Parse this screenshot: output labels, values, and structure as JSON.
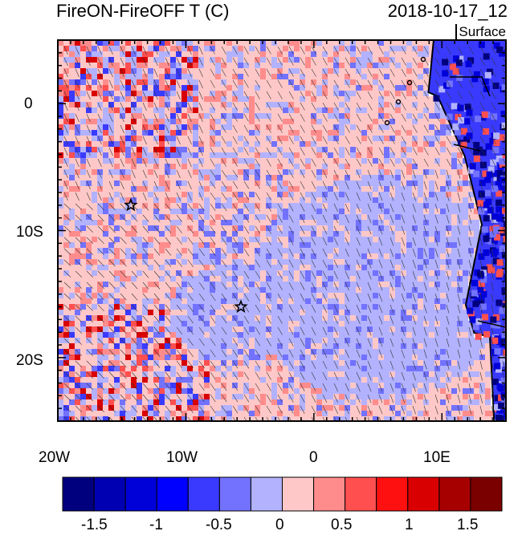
{
  "title": {
    "left": "FireON-FireOFF T (C)",
    "right": "2018-10-17_12",
    "level": "Surface"
  },
  "map": {
    "lon_range": [
      -20,
      15
    ],
    "lat_range": [
      -25,
      5
    ],
    "lon_ticks": [
      {
        "value": -20,
        "label": "20W"
      },
      {
        "value": -10,
        "label": "10W"
      },
      {
        "value": 0,
        "label": "0"
      },
      {
        "value": 10,
        "label": "10E"
      }
    ],
    "lat_ticks": [
      {
        "value": 0,
        "label": "0"
      },
      {
        "value": -10,
        "label": "10S"
      },
      {
        "value": -20,
        "label": "20S"
      }
    ],
    "markers": [
      {
        "name": "star-marker-1",
        "lon": -14.3,
        "lat": -8.0
      },
      {
        "name": "star-marker-2",
        "lon": -5.7,
        "lat": -16.0
      }
    ]
  },
  "colorbar": {
    "colors": [
      "#00007f",
      "#0000b2",
      "#0000d8",
      "#0000ff",
      "#3a3aff",
      "#7272ff",
      "#b2b2ff",
      "#ffc8c8",
      "#ff8c8c",
      "#ff4f4f",
      "#ff1010",
      "#d80000",
      "#a60000",
      "#7a0000"
    ],
    "labels": [
      "-1.5",
      "-1",
      "-0.5",
      "0",
      "0.5",
      "1",
      "1.5"
    ]
  }
}
